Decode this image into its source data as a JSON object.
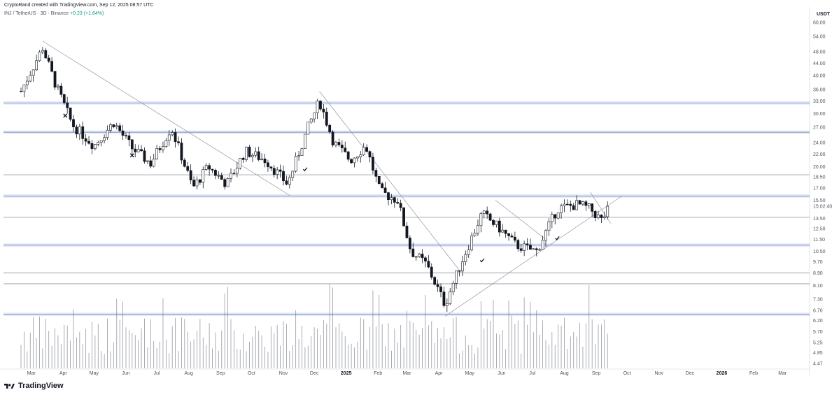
{
  "header": {
    "created_by": "CryptoRand created with TradingView.com, Sep 12, 2025 08:57 UTC",
    "symbol_line": "INJ / TetherUS · 3D · Binance",
    "change": "+0.23 (+1.64%)"
  },
  "price_axis": {
    "unit": "USDT",
    "ticks": [
      "60.00",
      "54.00",
      "48.00",
      "44.00",
      "40.00",
      "36.00",
      "33.00",
      "30.00",
      "27.00",
      "24.00",
      "22.00",
      "20.00",
      "18.50",
      "17.00",
      "15.50",
      "13.50",
      "12.50",
      "11.50",
      "10.50",
      "9.70",
      "8.90",
      "8.10",
      "7.30",
      "6.70",
      "6.20",
      "5.70",
      "5.25",
      "4.85",
      "4.47"
    ],
    "countdown": "15:02:40"
  },
  "time_axis": {
    "labels": [
      "Mar",
      "Apr",
      "May",
      "Jun",
      "Jul",
      "Aug",
      "Sep",
      "Oct",
      "Nov",
      "Dec",
      "2025",
      "Feb",
      "Mar",
      "Apr",
      "May",
      "Jun",
      "Jul",
      "Aug",
      "Sep",
      "Oct",
      "Nov",
      "Dec",
      "2026",
      "Feb",
      "Mar"
    ],
    "bold": [
      "2025",
      "2026"
    ]
  },
  "chart_data": {
    "type": "candlestick",
    "symbol": "INJ / TetherUS",
    "interval": "3D",
    "exchange": "Binance",
    "y_scale": "log",
    "ylim": [
      4.47,
      60.0
    ],
    "x_range": [
      "2024-02",
      "2026-03"
    ],
    "horizontal_levels_highlighted": [
      32.5,
      26.0,
      16.0,
      11.0,
      6.5
    ],
    "horizontal_levels_plain": [
      18.8,
      13.6,
      8.9,
      8.2
    ],
    "trendlines": [
      {
        "from": [
          "2024-03-12",
          52.0
        ],
        "to": [
          "2024-11-08",
          16.0
        ]
      },
      {
        "from": [
          "2024-12-06",
          35.5
        ],
        "to": [
          "2025-04-22",
          9.0
        ]
      },
      {
        "from": [
          "2025-04-07",
          6.4
        ],
        "to": [
          "2025-09-26",
          16.0
        ]
      },
      {
        "from": [
          "2025-05-26",
          15.5
        ],
        "to": [
          "2025-07-14",
          11.5
        ]
      },
      {
        "from": [
          "2025-08-26",
          16.5
        ],
        "to": [
          "2025-09-15",
          13.0
        ]
      }
    ],
    "markers": [
      {
        "type": "cross",
        "date": "2024-04-03",
        "price": 29.5
      },
      {
        "type": "cross",
        "date": "2024-06-07",
        "price": 21.8
      },
      {
        "type": "check",
        "date": "2024-11-22",
        "price": 19.6
      },
      {
        "type": "check",
        "date": "2025-05-13",
        "price": 9.8
      },
      {
        "type": "check",
        "date": "2025-07-25",
        "price": 11.6
      }
    ],
    "candles_approx": [
      {
        "date": "2024-02-20",
        "close": 35.5
      },
      {
        "date": "2024-03-12",
        "close": 49.5
      },
      {
        "date": "2024-03-25",
        "close": 37.0
      },
      {
        "date": "2024-04-10",
        "close": 27.5
      },
      {
        "date": "2024-05-01",
        "close": 23.5
      },
      {
        "date": "2024-05-20",
        "close": 28.0
      },
      {
        "date": "2024-06-07",
        "close": 23.0
      },
      {
        "date": "2024-06-25",
        "close": 20.5
      },
      {
        "date": "2024-07-15",
        "close": 27.0
      },
      {
        "date": "2024-08-05",
        "close": 17.0
      },
      {
        "date": "2024-08-20",
        "close": 20.0
      },
      {
        "date": "2024-09-07",
        "close": 17.5
      },
      {
        "date": "2024-09-25",
        "close": 22.5
      },
      {
        "date": "2024-10-15",
        "close": 21.0
      },
      {
        "date": "2024-11-05",
        "close": 17.5
      },
      {
        "date": "2024-11-25",
        "close": 27.0
      },
      {
        "date": "2024-12-06",
        "close": 33.0
      },
      {
        "date": "2024-12-20",
        "close": 24.0
      },
      {
        "date": "2025-01-05",
        "close": 21.0
      },
      {
        "date": "2025-01-20",
        "close": 23.5
      },
      {
        "date": "2025-02-03",
        "close": 16.5
      },
      {
        "date": "2025-02-20",
        "close": 15.5
      },
      {
        "date": "2025-03-05",
        "close": 10.5
      },
      {
        "date": "2025-03-20",
        "close": 9.5
      },
      {
        "date": "2025-04-07",
        "close": 7.0
      },
      {
        "date": "2025-04-22",
        "close": 9.5
      },
      {
        "date": "2025-05-13",
        "close": 14.0
      },
      {
        "date": "2025-05-30",
        "close": 12.5
      },
      {
        "date": "2025-06-15",
        "close": 11.0
      },
      {
        "date": "2025-07-05",
        "close": 10.5
      },
      {
        "date": "2025-07-25",
        "close": 14.5
      },
      {
        "date": "2025-08-14",
        "close": 15.0
      },
      {
        "date": "2025-08-26",
        "close": 14.5
      },
      {
        "date": "2025-09-06",
        "close": 13.3
      },
      {
        "date": "2025-09-12",
        "close": 14.3
      }
    ]
  }
}
